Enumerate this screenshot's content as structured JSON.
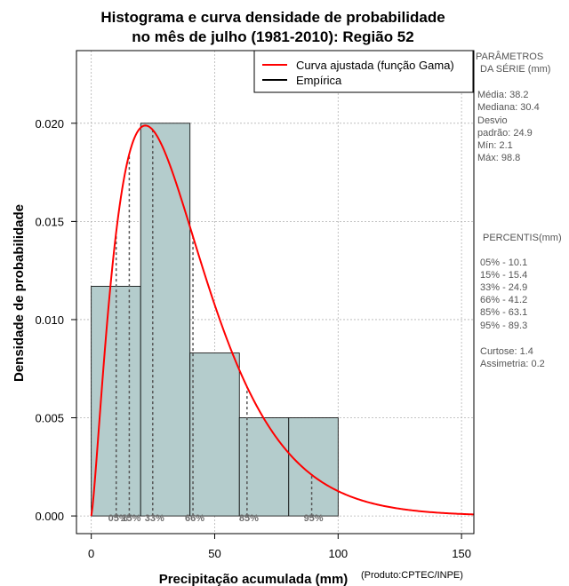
{
  "chart_data": {
    "type": "histogram",
    "title_line1": "Histograma e curva densidade de probabilidade",
    "title_line2": "no mês de julho (1981-2010): Região 52",
    "xlabel": "Precipitação acumulada (mm)",
    "ylabel": "Densidade de probabilidade",
    "credit": "(Produto:CPTEC/INPE)",
    "xlim": [
      -6,
      155
    ],
    "ylim": [
      -0.0009,
      0.0237
    ],
    "x_ticks": [
      0,
      50,
      100,
      150
    ],
    "y_ticks": [
      0.0,
      0.005,
      0.01,
      0.015,
      0.02
    ],
    "y_tick_labels": [
      "0.000",
      "0.005",
      "0.010",
      "0.015",
      "0.020"
    ],
    "bars": [
      {
        "x0": 0,
        "x1": 20,
        "density": 0.0117
      },
      {
        "x0": 20,
        "x1": 40,
        "density": 0.02
      },
      {
        "x0": 40,
        "x1": 60,
        "density": 0.0083
      },
      {
        "x0": 60,
        "x1": 80,
        "density": 0.005
      },
      {
        "x0": 80,
        "x1": 100,
        "density": 0.005
      }
    ],
    "fitted_curve": {
      "name": "Curva ajustada (função Gama)",
      "distribution": "gamma",
      "shape": 2.35,
      "scale": 16.25
    },
    "percentile_lines": [
      {
        "label": "05%",
        "value": 10.1
      },
      {
        "label": "15%",
        "value": 15.4
      },
      {
        "label": "33%",
        "value": 24.9
      },
      {
        "label": "66%",
        "value": 41.2
      },
      {
        "label": "85%",
        "value": 63.1
      },
      {
        "label": "95%",
        "value": 89.3
      }
    ],
    "legend": [
      {
        "label": "Curva ajustada (função Gama)",
        "color": "#ff0000"
      },
      {
        "label": "Empírica",
        "color": "#000000"
      }
    ],
    "colors": {
      "bar_fill": "#b4cccc",
      "bar_edge": "#000000",
      "curve": "#ff0000",
      "grid": "#b3b3b3",
      "percentile_line": "#555555"
    }
  },
  "stats_panel": {
    "params_title_1": "PARÂMETROS",
    "params_title_2": "DA SÉRIE (mm)",
    "media": "Média:  38.2",
    "mediana": "Mediana:  30.4",
    "desvio_1": "Desvio",
    "desvio_2": "padrão:  24.9",
    "min": "Mín:  2.1",
    "max": "Máx:  98.8",
    "percentis_title": "PERCENTIS(mm)",
    "percentis": [
      "05% -   10.1",
      "15% -   15.4",
      "33% -   24.9",
      "66% -   41.2",
      "85% -   63.1",
      "95% -   89.3"
    ],
    "curtose": "Curtose:  1.4",
    "assimetria": "Assimetria:  0.2"
  }
}
